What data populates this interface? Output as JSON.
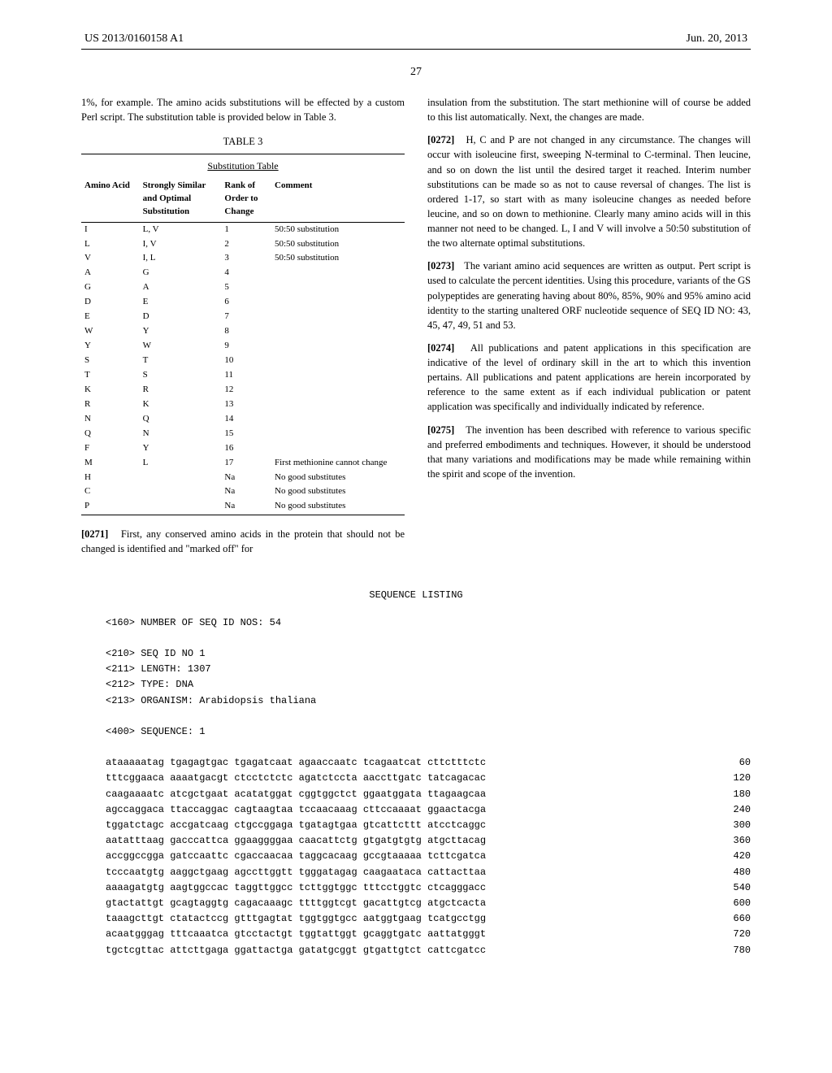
{
  "header": {
    "left": "US 2013/0160158 A1",
    "right": "Jun. 20, 2013"
  },
  "pagenum": "27",
  "col_left": {
    "intro": "1%, for example. The amino acids substitutions will be effected by a custom Perl script. The substitution table is provided below in Table 3.",
    "table_label": "TABLE 3",
    "table_title": "Substitution Table",
    "table_headers": [
      "Amino Acid",
      "Strongly Similar and Optimal Substitution",
      "Rank of Order to Change",
      "Comment"
    ],
    "rows": [
      [
        "I",
        "L, V",
        "1",
        "50:50 substitution"
      ],
      [
        "L",
        "I, V",
        "2",
        "50:50 substitution"
      ],
      [
        "V",
        "I, L",
        "3",
        "50:50 substitution"
      ],
      [
        "A",
        "G",
        "4",
        ""
      ],
      [
        "G",
        "A",
        "5",
        ""
      ],
      [
        "D",
        "E",
        "6",
        ""
      ],
      [
        "E",
        "D",
        "7",
        ""
      ],
      [
        "W",
        "Y",
        "8",
        ""
      ],
      [
        "Y",
        "W",
        "9",
        ""
      ],
      [
        "S",
        "T",
        "10",
        ""
      ],
      [
        "T",
        "S",
        "11",
        ""
      ],
      [
        "K",
        "R",
        "12",
        ""
      ],
      [
        "R",
        "K",
        "13",
        ""
      ],
      [
        "N",
        "Q",
        "14",
        ""
      ],
      [
        "Q",
        "N",
        "15",
        ""
      ],
      [
        "F",
        "Y",
        "16",
        ""
      ],
      [
        "M",
        "L",
        "17",
        "First methionine cannot change"
      ],
      [
        "H",
        "",
        "Na",
        "No good substitutes"
      ],
      [
        "C",
        "",
        "Na",
        "No good substitutes"
      ],
      [
        "P",
        "",
        "Na",
        "No good substitutes"
      ]
    ],
    "para0271_num": "[0271]",
    "para0271": "First, any conserved amino acids in the protein that should not be changed is identified and \"marked off\" for"
  },
  "col_right": {
    "cont": "insulation from the substitution. The start methionine will of course be added to this list automatically. Next, the changes are made.",
    "p0272_num": "[0272]",
    "p0272": "H, C and P are not changed in any circumstance. The changes will occur with isoleucine first, sweeping N-terminal to C-terminal. Then leucine, and so on down the list until the desired target it reached. Interim number substitutions can be made so as not to cause reversal of changes. The list is ordered 1-17, so start with as many isoleucine changes as needed before leucine, and so on down to methionine. Clearly many amino acids will in this manner not need to be changed. L, I and V will involve a 50:50 substitution of the two alternate optimal substitutions.",
    "p0273_num": "[0273]",
    "p0273": "The variant amino acid sequences are written as output. Pert script is used to calculate the percent identities. Using this procedure, variants of the GS polypeptides are generating having about 80%, 85%, 90% and 95% amino acid identity to the starting unaltered ORF nucleotide sequence of SEQ ID NO: 43, 45, 47, 49, 51 and 53.",
    "p0274_num": "[0274]",
    "p0274": "All publications and patent applications in this specification are indicative of the level of ordinary skill in the art to which this invention pertains. All publications and patent applications are herein incorporated by reference to the same extent as if each individual publication or patent application was specifically and individually indicated by reference.",
    "p0275_num": "[0275]",
    "p0275": "The invention has been described with reference to various specific and preferred embodiments and techniques. However, it should be understood that many variations and modifications may be made while remaining within the spirit and scope of the invention."
  },
  "seq": {
    "heading": "SEQUENCE LISTING",
    "meta": [
      "<160> NUMBER OF SEQ ID NOS: 54",
      "",
      "<210> SEQ ID NO 1",
      "<211> LENGTH: 1307",
      "<212> TYPE: DNA",
      "<213> ORGANISM: Arabidopsis thaliana",
      "",
      "<400> SEQUENCE: 1",
      ""
    ],
    "lines": [
      [
        "ataaaaatag tgagagtgac tgagatcaat agaaccaatc tcagaatcat cttctttctc",
        "60"
      ],
      [
        "tttcggaaca aaaatgacgt ctcctctctc agatctccta aaccttgatc tatcagacac",
        "120"
      ],
      [
        "caagaaaatc atcgctgaat acatatggat cggtggctct ggaatggata ttagaagcaa",
        "180"
      ],
      [
        "agccaggaca ttaccaggac cagtaagtaa tccaacaaag cttccaaaat ggaactacga",
        "240"
      ],
      [
        "tggatctagc accgatcaag ctgccggaga tgatagtgaa gtcattcttt atcctcaggc",
        "300"
      ],
      [
        "aatatttaag gacccattca ggaaggggaa caacattctg gtgatgtgtg atgcttacag",
        "360"
      ],
      [
        "accggccgga gatccaattc cgaccaacaa taggcacaag gccgtaaaaa tcttcgatca",
        "420"
      ],
      [
        "tcccaatgtg aaggctgaag agccttggtt tgggatagag caagaataca cattacttaa",
        "480"
      ],
      [
        "aaaagatgtg aagtggccac taggttggcc tcttggtggc tttcctggtc ctcagggacc",
        "540"
      ],
      [
        "gtactattgt gcagtaggtg cagacaaagc ttttggtcgt gacattgtcg atgctcacta",
        "600"
      ],
      [
        "taaagcttgt ctatactccg gtttgagtat tggtggtgcc aatggtgaag tcatgcctgg",
        "660"
      ],
      [
        "acaatgggag tttcaaatca gtcctactgt tggtattggt gcaggtgatc aattatgggt",
        "720"
      ],
      [
        "tgctcgttac attcttgaga ggattactga gatatgcggt gtgattgtct cattcgatcc",
        "780"
      ]
    ]
  }
}
